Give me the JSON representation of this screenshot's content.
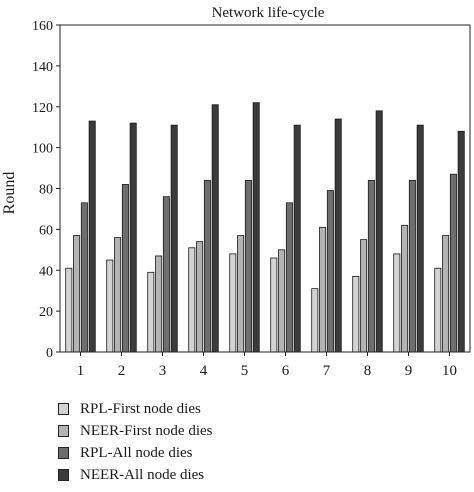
{
  "chart_data": {
    "type": "bar",
    "title": "Network life-cycle",
    "xlabel": "",
    "ylabel": "Round",
    "ylim": [
      0,
      160
    ],
    "yticks": [
      0,
      20,
      40,
      60,
      80,
      100,
      120,
      140,
      160
    ],
    "grid": false,
    "legend_position": "bottom-left",
    "categories": [
      "1",
      "2",
      "3",
      "4",
      "5",
      "6",
      "7",
      "8",
      "9",
      "10"
    ],
    "series": [
      {
        "name": "RPL-First node dies",
        "color": "#d3d3d3",
        "values": [
          41,
          45,
          39,
          51,
          48,
          46,
          31,
          37,
          48,
          41
        ]
      },
      {
        "name": "NEER-First node dies",
        "color": "#b3b3b3",
        "values": [
          57,
          56,
          47,
          54,
          57,
          50,
          61,
          55,
          62,
          57
        ]
      },
      {
        "name": "RPL-All node dies",
        "color": "#6e6e6e",
        "values": [
          73,
          82,
          76,
          84,
          84,
          73,
          79,
          84,
          84,
          87
        ]
      },
      {
        "name": "NEER-All node dies",
        "color": "#3b3b3b",
        "values": [
          113,
          112,
          111,
          121,
          122,
          111,
          114,
          118,
          111,
          108
        ]
      }
    ]
  }
}
